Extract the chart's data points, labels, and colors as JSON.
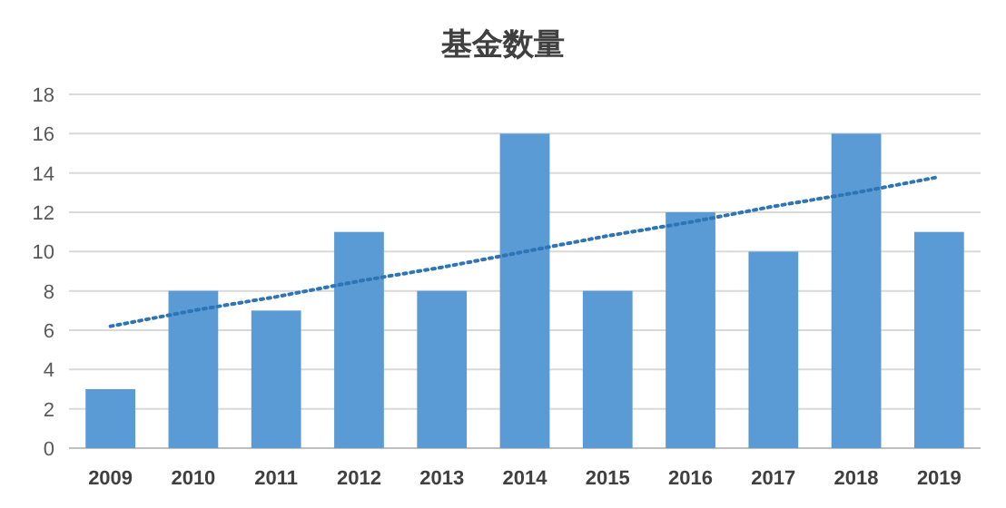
{
  "chart_data": {
    "type": "bar",
    "title": "基金数量",
    "categories": [
      "2009",
      "2010",
      "2011",
      "2012",
      "2013",
      "2014",
      "2015",
      "2016",
      "2017",
      "2018",
      "2019"
    ],
    "series": [
      {
        "color": "#5b9bd5",
        "values": [
          3,
          8,
          7,
          11,
          8,
          16,
          8,
          12,
          10,
          16,
          11
        ]
      },
      {
        "type": "line",
        "color": "#2e75b6",
        "line_style": "dotted",
        "values": [
          6.2,
          7.0,
          7.7,
          8.5,
          9.2,
          10.0,
          10.8,
          11.5,
          12.3,
          13.0,
          13.8
        ]
      }
    ],
    "ylim": [
      0,
      18
    ],
    "yticks": [
      0,
      2,
      4,
      6,
      8,
      10,
      12,
      14,
      16,
      18
    ],
    "grid": "y"
  }
}
